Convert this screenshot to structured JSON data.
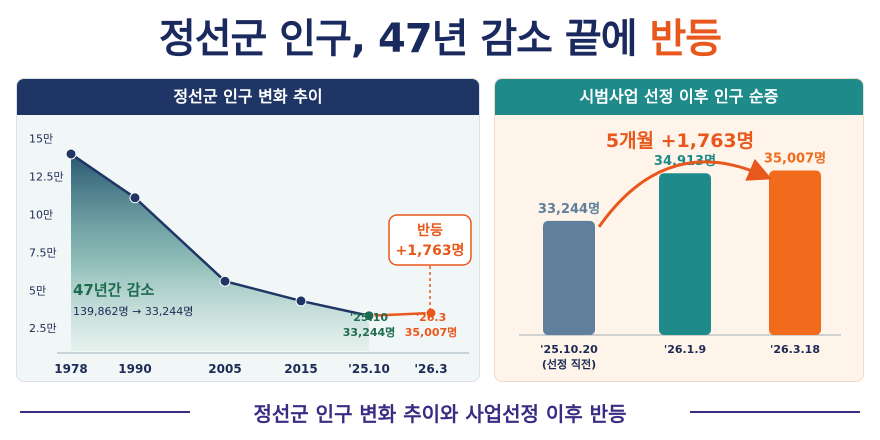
{
  "title": {
    "main": "정선군 인구, 47년 감소 끝에 ",
    "accent": "반등"
  },
  "left_panel": {
    "header": "정선군 인구 변화 추이",
    "decline_title": "47년간 감소",
    "decline_detail": "139,862명 → 33,244명",
    "rebound_label_1": "반등",
    "rebound_label_2": "+1,763명"
  },
  "right_panel": {
    "header": "시범사업 선정 이후 인구 순증",
    "highlight": "5개월 +1,763명"
  },
  "footer": "정선군 인구 변화 추이와 사업선정 이후 반등",
  "colors": {
    "navy": "#1f3566",
    "teal": "#1e8b8a",
    "orange": "#e8581c",
    "green_dark": "#1f6b4f",
    "slate_bar": "#5f7f9c"
  },
  "chart_data": [
    {
      "type": "area",
      "title": "정선군 인구 변화 추이",
      "y_ticks": [
        "15만",
        "12.5만",
        "10만",
        "7.5만",
        "5만",
        "2.5만"
      ],
      "y_tick_values": [
        150000,
        125000,
        100000,
        75000,
        50000,
        25000
      ],
      "x_ticks": [
        "1978",
        "1990",
        "2005",
        "2015",
        "'25.10",
        "'26.3"
      ],
      "ylim": [
        10000,
        155000
      ],
      "series": [
        {
          "values": [
            139862,
            111000,
            56000,
            43000,
            33244,
            35007
          ]
        }
      ],
      "point_labels": [
        {
          "lines": [
            "'25.10",
            "33,244명"
          ]
        },
        {
          "lines": [
            "'26.3",
            "35,007명"
          ]
        }
      ],
      "grid": false
    },
    {
      "type": "bar",
      "title": "시범사업 선정 이후 인구 순증",
      "categories": [
        "'25.10.20",
        "'26.1.9",
        "'26.3.18"
      ],
      "category_notes": [
        "(선정 직전)",
        "",
        ""
      ],
      "values": [
        33244,
        34913,
        35007
      ],
      "value_labels": [
        "33,244명",
        "34,913명",
        "35,007명"
      ],
      "bar_colors": [
        "#5f7f9c",
        "#1e8b8a",
        "#f26a1b"
      ]
    }
  ]
}
